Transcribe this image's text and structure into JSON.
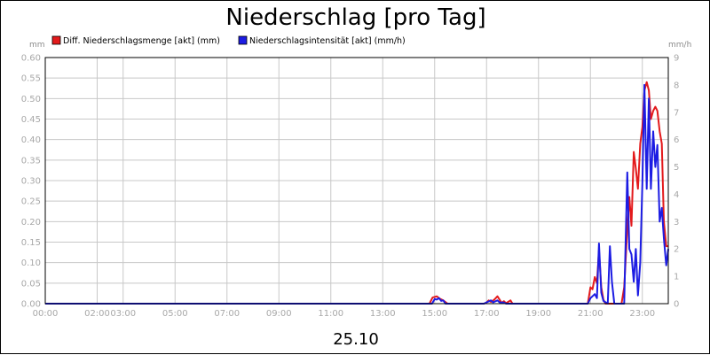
{
  "chart_data": {
    "type": "line",
    "title": "Niederschlag [pro Tag]",
    "date_label": "25.10",
    "y_left_unit": "mm",
    "y_right_unit": "mm/h",
    "y_left": {
      "min": 0,
      "max": 0.6,
      "step": 0.05,
      "ticks": [
        "0.00",
        "0.05",
        "0.10",
        "0.15",
        "0.20",
        "0.25",
        "0.30",
        "0.35",
        "0.40",
        "0.45",
        "0.50",
        "0.55",
        "0.60"
      ]
    },
    "y_right": {
      "min": 0,
      "max": 9,
      "step": 1,
      "ticks": [
        "0",
        "1",
        "2",
        "3",
        "4",
        "5",
        "6",
        "7",
        "8",
        "9"
      ]
    },
    "x_range_hours": [
      0,
      24
    ],
    "x_ticks": [
      {
        "label": "00:00",
        "hour": 0
      },
      {
        "label": "02:00",
        "hour": 2
      },
      {
        "label": "03:00",
        "hour": 3
      },
      {
        "label": "05:00",
        "hour": 5
      },
      {
        "label": "07:00",
        "hour": 7
      },
      {
        "label": "09:00",
        "hour": 9
      },
      {
        "label": "11:00",
        "hour": 11
      },
      {
        "label": "13:00",
        "hour": 13
      },
      {
        "label": "15:00",
        "hour": 15
      },
      {
        "label": "17:00",
        "hour": 17
      },
      {
        "label": "19:00",
        "hour": 19
      },
      {
        "label": "21:00",
        "hour": 21
      },
      {
        "label": "23:00",
        "hour": 23
      }
    ],
    "grid": true,
    "legend_position": "top-left",
    "series": [
      {
        "name": "Diff. Niederschlagsmenge [akt] (mm)",
        "color": "#e31a1c",
        "axis": "left",
        "points": [
          [
            0,
            0
          ],
          [
            14.8,
            0
          ],
          [
            14.92,
            0.015
          ],
          [
            15.08,
            0.018
          ],
          [
            15.2,
            0.012
          ],
          [
            15.33,
            0.008
          ],
          [
            15.5,
            0
          ],
          [
            16.9,
            0
          ],
          [
            17.0,
            0.003
          ],
          [
            17.08,
            0.008
          ],
          [
            17.17,
            0.004
          ],
          [
            17.3,
            0.01
          ],
          [
            17.42,
            0.018
          ],
          [
            17.5,
            0.01
          ],
          [
            17.58,
            0.002
          ],
          [
            17.67,
            0.006
          ],
          [
            17.75,
            0.001
          ],
          [
            17.92,
            0.008
          ],
          [
            18.0,
            0
          ],
          [
            20.9,
            0
          ],
          [
            21.0,
            0.04
          ],
          [
            21.08,
            0.035
          ],
          [
            21.17,
            0.065
          ],
          [
            21.25,
            0.05
          ],
          [
            21.33,
            0.13
          ],
          [
            21.42,
            0.04
          ],
          [
            21.5,
            0.01
          ],
          [
            21.58,
            0
          ],
          [
            22.2,
            0
          ],
          [
            22.3,
            0.04
          ],
          [
            22.42,
            0.18
          ],
          [
            22.5,
            0.26
          ],
          [
            22.58,
            0.19
          ],
          [
            22.67,
            0.37
          ],
          [
            22.75,
            0.33
          ],
          [
            22.83,
            0.28
          ],
          [
            22.92,
            0.39
          ],
          [
            23.0,
            0.43
          ],
          [
            23.08,
            0.52
          ],
          [
            23.17,
            0.54
          ],
          [
            23.25,
            0.52
          ],
          [
            23.33,
            0.45
          ],
          [
            23.42,
            0.47
          ],
          [
            23.5,
            0.48
          ],
          [
            23.58,
            0.47
          ],
          [
            23.67,
            0.42
          ],
          [
            23.75,
            0.39
          ],
          [
            23.83,
            0.2
          ],
          [
            23.92,
            0.14
          ],
          [
            24.0,
            0.14
          ]
        ]
      },
      {
        "name": "Niederschlagsintensität [akt] (mm/h)",
        "color": "#1c1ce3",
        "axis": "right",
        "points": [
          [
            0,
            0
          ],
          [
            14.9,
            0
          ],
          [
            15.0,
            0.17
          ],
          [
            15.08,
            0.15
          ],
          [
            15.17,
            0.2
          ],
          [
            15.25,
            0.1
          ],
          [
            15.33,
            0.12
          ],
          [
            15.42,
            0
          ],
          [
            16.9,
            0
          ],
          [
            17.0,
            0.05
          ],
          [
            17.17,
            0.12
          ],
          [
            17.25,
            0.05
          ],
          [
            17.42,
            0.12
          ],
          [
            17.5,
            0.05
          ],
          [
            17.67,
            0.04
          ],
          [
            17.75,
            0
          ],
          [
            20.9,
            0
          ],
          [
            21.0,
            0.2
          ],
          [
            21.17,
            0.35
          ],
          [
            21.25,
            0.2
          ],
          [
            21.33,
            2.2
          ],
          [
            21.42,
            0.4
          ],
          [
            21.5,
            0.1
          ],
          [
            21.67,
            0
          ],
          [
            21.75,
            2.1
          ],
          [
            21.83,
            0.8
          ],
          [
            21.92,
            0
          ],
          [
            22.3,
            0
          ],
          [
            22.42,
            4.8
          ],
          [
            22.5,
            2.0
          ],
          [
            22.58,
            1.8
          ],
          [
            22.67,
            0.8
          ],
          [
            22.75,
            2.0
          ],
          [
            22.83,
            0.3
          ],
          [
            22.92,
            1.5
          ],
          [
            23.0,
            4.4
          ],
          [
            23.08,
            8.0
          ],
          [
            23.17,
            4.2
          ],
          [
            23.25,
            7.5
          ],
          [
            23.33,
            4.2
          ],
          [
            23.42,
            6.3
          ],
          [
            23.5,
            5.0
          ],
          [
            23.58,
            5.8
          ],
          [
            23.67,
            3.0
          ],
          [
            23.75,
            3.5
          ],
          [
            23.83,
            2.4
          ],
          [
            23.92,
            1.4
          ],
          [
            24.0,
            2.0
          ]
        ]
      }
    ]
  }
}
